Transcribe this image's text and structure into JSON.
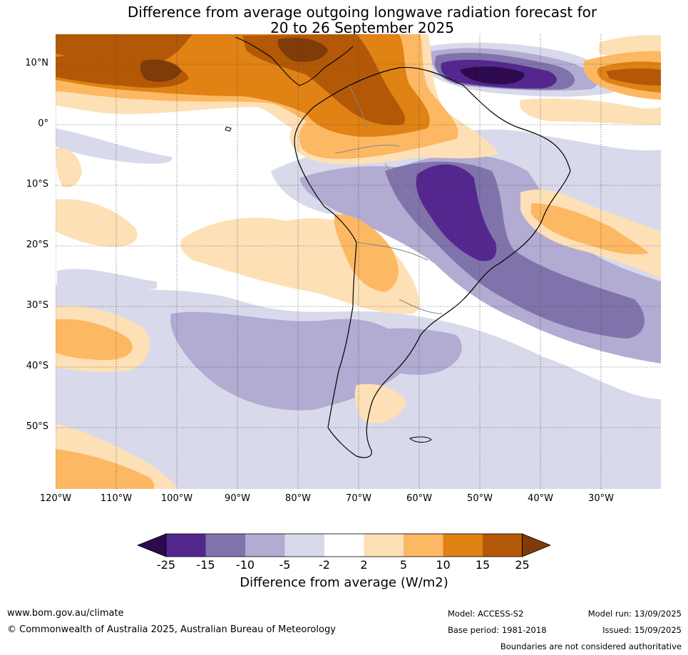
{
  "title": {
    "line1": "Difference from average outgoing longwave radiation forecast for",
    "line2": "20 to 26 September 2025"
  },
  "axes": {
    "lat_labels": [
      "10°N",
      "0°",
      "10°S",
      "20°S",
      "30°S",
      "40°S",
      "50°S"
    ],
    "lon_labels": [
      "120°W",
      "110°W",
      "100°W",
      "90°W",
      "80°W",
      "70°W",
      "60°W",
      "50°W",
      "40°W",
      "30°W"
    ]
  },
  "colorbar": {
    "ticks": [
      "-25",
      "-15",
      "-10",
      "-5",
      "-2",
      "2",
      "5",
      "10",
      "15",
      "25"
    ],
    "colors": [
      "#2d0a4e",
      "#54278f",
      "#8073ac",
      "#b2abd2",
      "#d8daeb",
      "#ffffff",
      "#fee0b6",
      "#fdb863",
      "#e08214",
      "#b35806",
      "#7f3b08"
    ],
    "label": "Difference from average (W/m2)"
  },
  "footer": {
    "url": "www.bom.gov.au/climate",
    "copyright": "© Commonwealth of Australia 2025, Australian Bureau of Meteorology",
    "model": "Model: ACCESS-S2",
    "base_period": "Base period: 1981-2018",
    "model_run": "Model run: 13/09/2025",
    "issued": "Issued: 15/09/2025",
    "disclaimer": "Boundaries are not considered authoritative"
  }
}
